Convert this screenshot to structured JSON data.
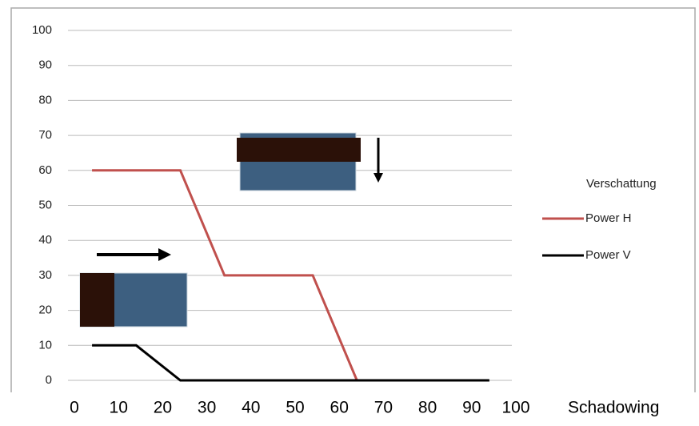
{
  "chart_data": {
    "type": "line",
    "x_label": "Schadowing",
    "legend_title": "Verschattung",
    "series": [
      {
        "name": "Power H",
        "color": "#c0504d",
        "x": [
          4,
          24,
          34,
          54,
          64
        ],
        "values": [
          60,
          60,
          30,
          30,
          0
        ]
      },
      {
        "name": "Power V",
        "color": "#000000",
        "x": [
          4,
          14,
          24,
          94
        ],
        "values": [
          10,
          10,
          0,
          0
        ]
      }
    ],
    "xlim": [
      0,
      100
    ],
    "xticks": [
      0,
      10,
      20,
      30,
      40,
      50,
      60,
      70,
      80,
      90,
      100
    ],
    "ylim": [
      0,
      100
    ],
    "yticks": [
      0,
      10,
      20,
      30,
      40,
      50,
      60,
      70,
      80,
      90,
      100
    ],
    "grid": true
  }
}
